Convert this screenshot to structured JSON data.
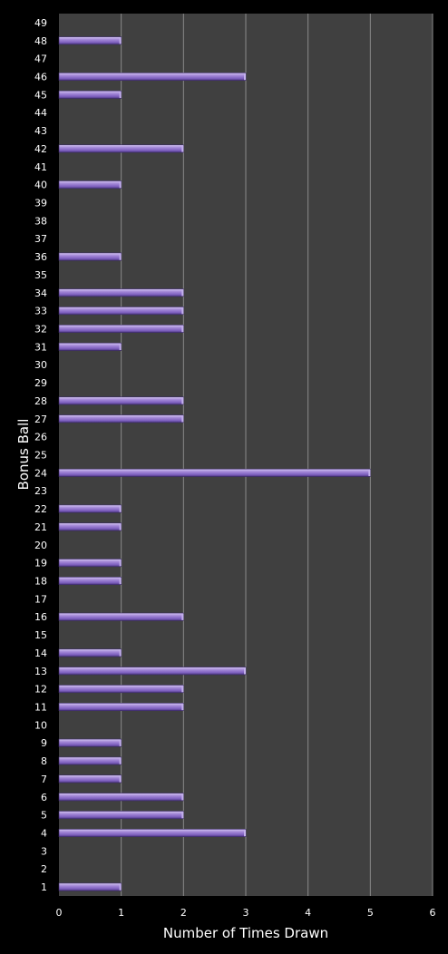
{
  "chart_data": {
    "type": "bar",
    "orientation": "horizontal",
    "title": "",
    "xlabel": "Number of Times Drawn",
    "ylabel": "Bonus Ball",
    "xlim": [
      0,
      6
    ],
    "x_ticks": [
      0,
      1,
      2,
      3,
      4,
      5,
      6
    ],
    "grid": true,
    "legend": "none",
    "categories": [
      "1",
      "2",
      "3",
      "4",
      "5",
      "6",
      "7",
      "8",
      "9",
      "10",
      "11",
      "12",
      "13",
      "14",
      "15",
      "16",
      "17",
      "18",
      "19",
      "20",
      "21",
      "22",
      "23",
      "24",
      "25",
      "26",
      "27",
      "28",
      "29",
      "30",
      "31",
      "32",
      "33",
      "34",
      "35",
      "36",
      "37",
      "38",
      "39",
      "40",
      "41",
      "42",
      "43",
      "44",
      "45",
      "46",
      "47",
      "48",
      "49"
    ],
    "values": [
      1,
      0,
      0,
      3,
      2,
      2,
      1,
      1,
      1,
      0,
      2,
      2,
      3,
      1,
      0,
      2,
      0,
      1,
      1,
      0,
      1,
      1,
      0,
      5,
      0,
      0,
      2,
      2,
      0,
      0,
      1,
      2,
      2,
      2,
      0,
      1,
      0,
      0,
      0,
      1,
      0,
      2,
      0,
      0,
      1,
      3,
      0,
      1,
      0
    ],
    "colors": {
      "background": "#000000",
      "plot_area": "#404040",
      "bar": "#8c6fc9",
      "bar_highlight": "#c3b0ec",
      "gridline": "#8a8a8a",
      "text": "#ffffff"
    }
  }
}
